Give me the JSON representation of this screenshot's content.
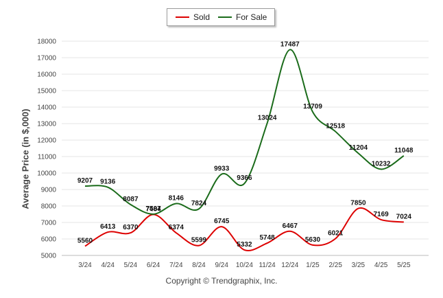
{
  "chart_data": {
    "type": "line",
    "title": "",
    "xlabel": "",
    "ylabel": "Average Price (in $,000)",
    "categories": [
      "3/24",
      "4/24",
      "5/24",
      "6/24",
      "7/24",
      "8/24",
      "9/24",
      "10/24",
      "11/24",
      "12/24",
      "1/25",
      "2/25",
      "3/25",
      "4/25",
      "5/25"
    ],
    "ylim": [
      5000,
      18000
    ],
    "yticks": [
      5000,
      6000,
      7000,
      8000,
      9000,
      10000,
      11000,
      12000,
      13000,
      14000,
      15000,
      16000,
      17000,
      18000
    ],
    "grid": true,
    "legend_position": "top-center",
    "series": [
      {
        "name": "Sold",
        "color": "#dd0000",
        "values": [
          5560,
          6413,
          6370,
          7484,
          6374,
          5599,
          6745,
          5332,
          5748,
          6467,
          5630,
          6021,
          7850,
          7169,
          7024
        ]
      },
      {
        "name": "For Sale",
        "color": "#1a6b1a",
        "values": [
          9207,
          9136,
          8087,
          7507,
          8146,
          7824,
          9933,
          9366,
          13024,
          17487,
          13709,
          12518,
          11204,
          10232,
          11048
        ]
      }
    ]
  },
  "footer": "Copyright © Trendgraphix, Inc."
}
